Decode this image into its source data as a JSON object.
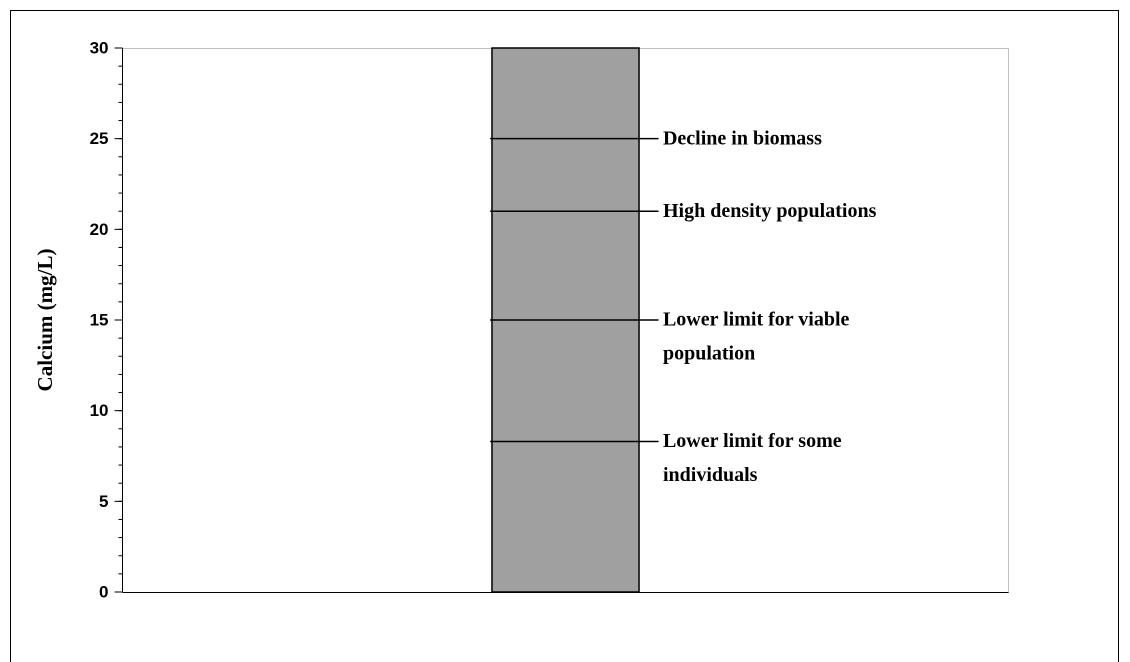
{
  "chart_data": {
    "type": "bar",
    "y_label": "Calcium (mg/L)",
    "categories": [
      null
    ],
    "values": [
      30
    ],
    "color": "#a0a0a0",
    "ylim": [
      0,
      30
    ],
    "yticks": [
      0,
      5,
      10,
      15,
      20,
      25,
      30
    ],
    "yminor_step": 1,
    "annotations": [
      {
        "value": 25,
        "lines": [
          "Decline in biomass"
        ]
      },
      {
        "value": 21,
        "lines": [
          "High density populations"
        ]
      },
      {
        "value": 15,
        "lines": [
          "Lower limit for viable",
          "population"
        ]
      },
      {
        "value": 8.3,
        "lines": [
          "Lower limit for some",
          "individuals"
        ]
      }
    ]
  }
}
